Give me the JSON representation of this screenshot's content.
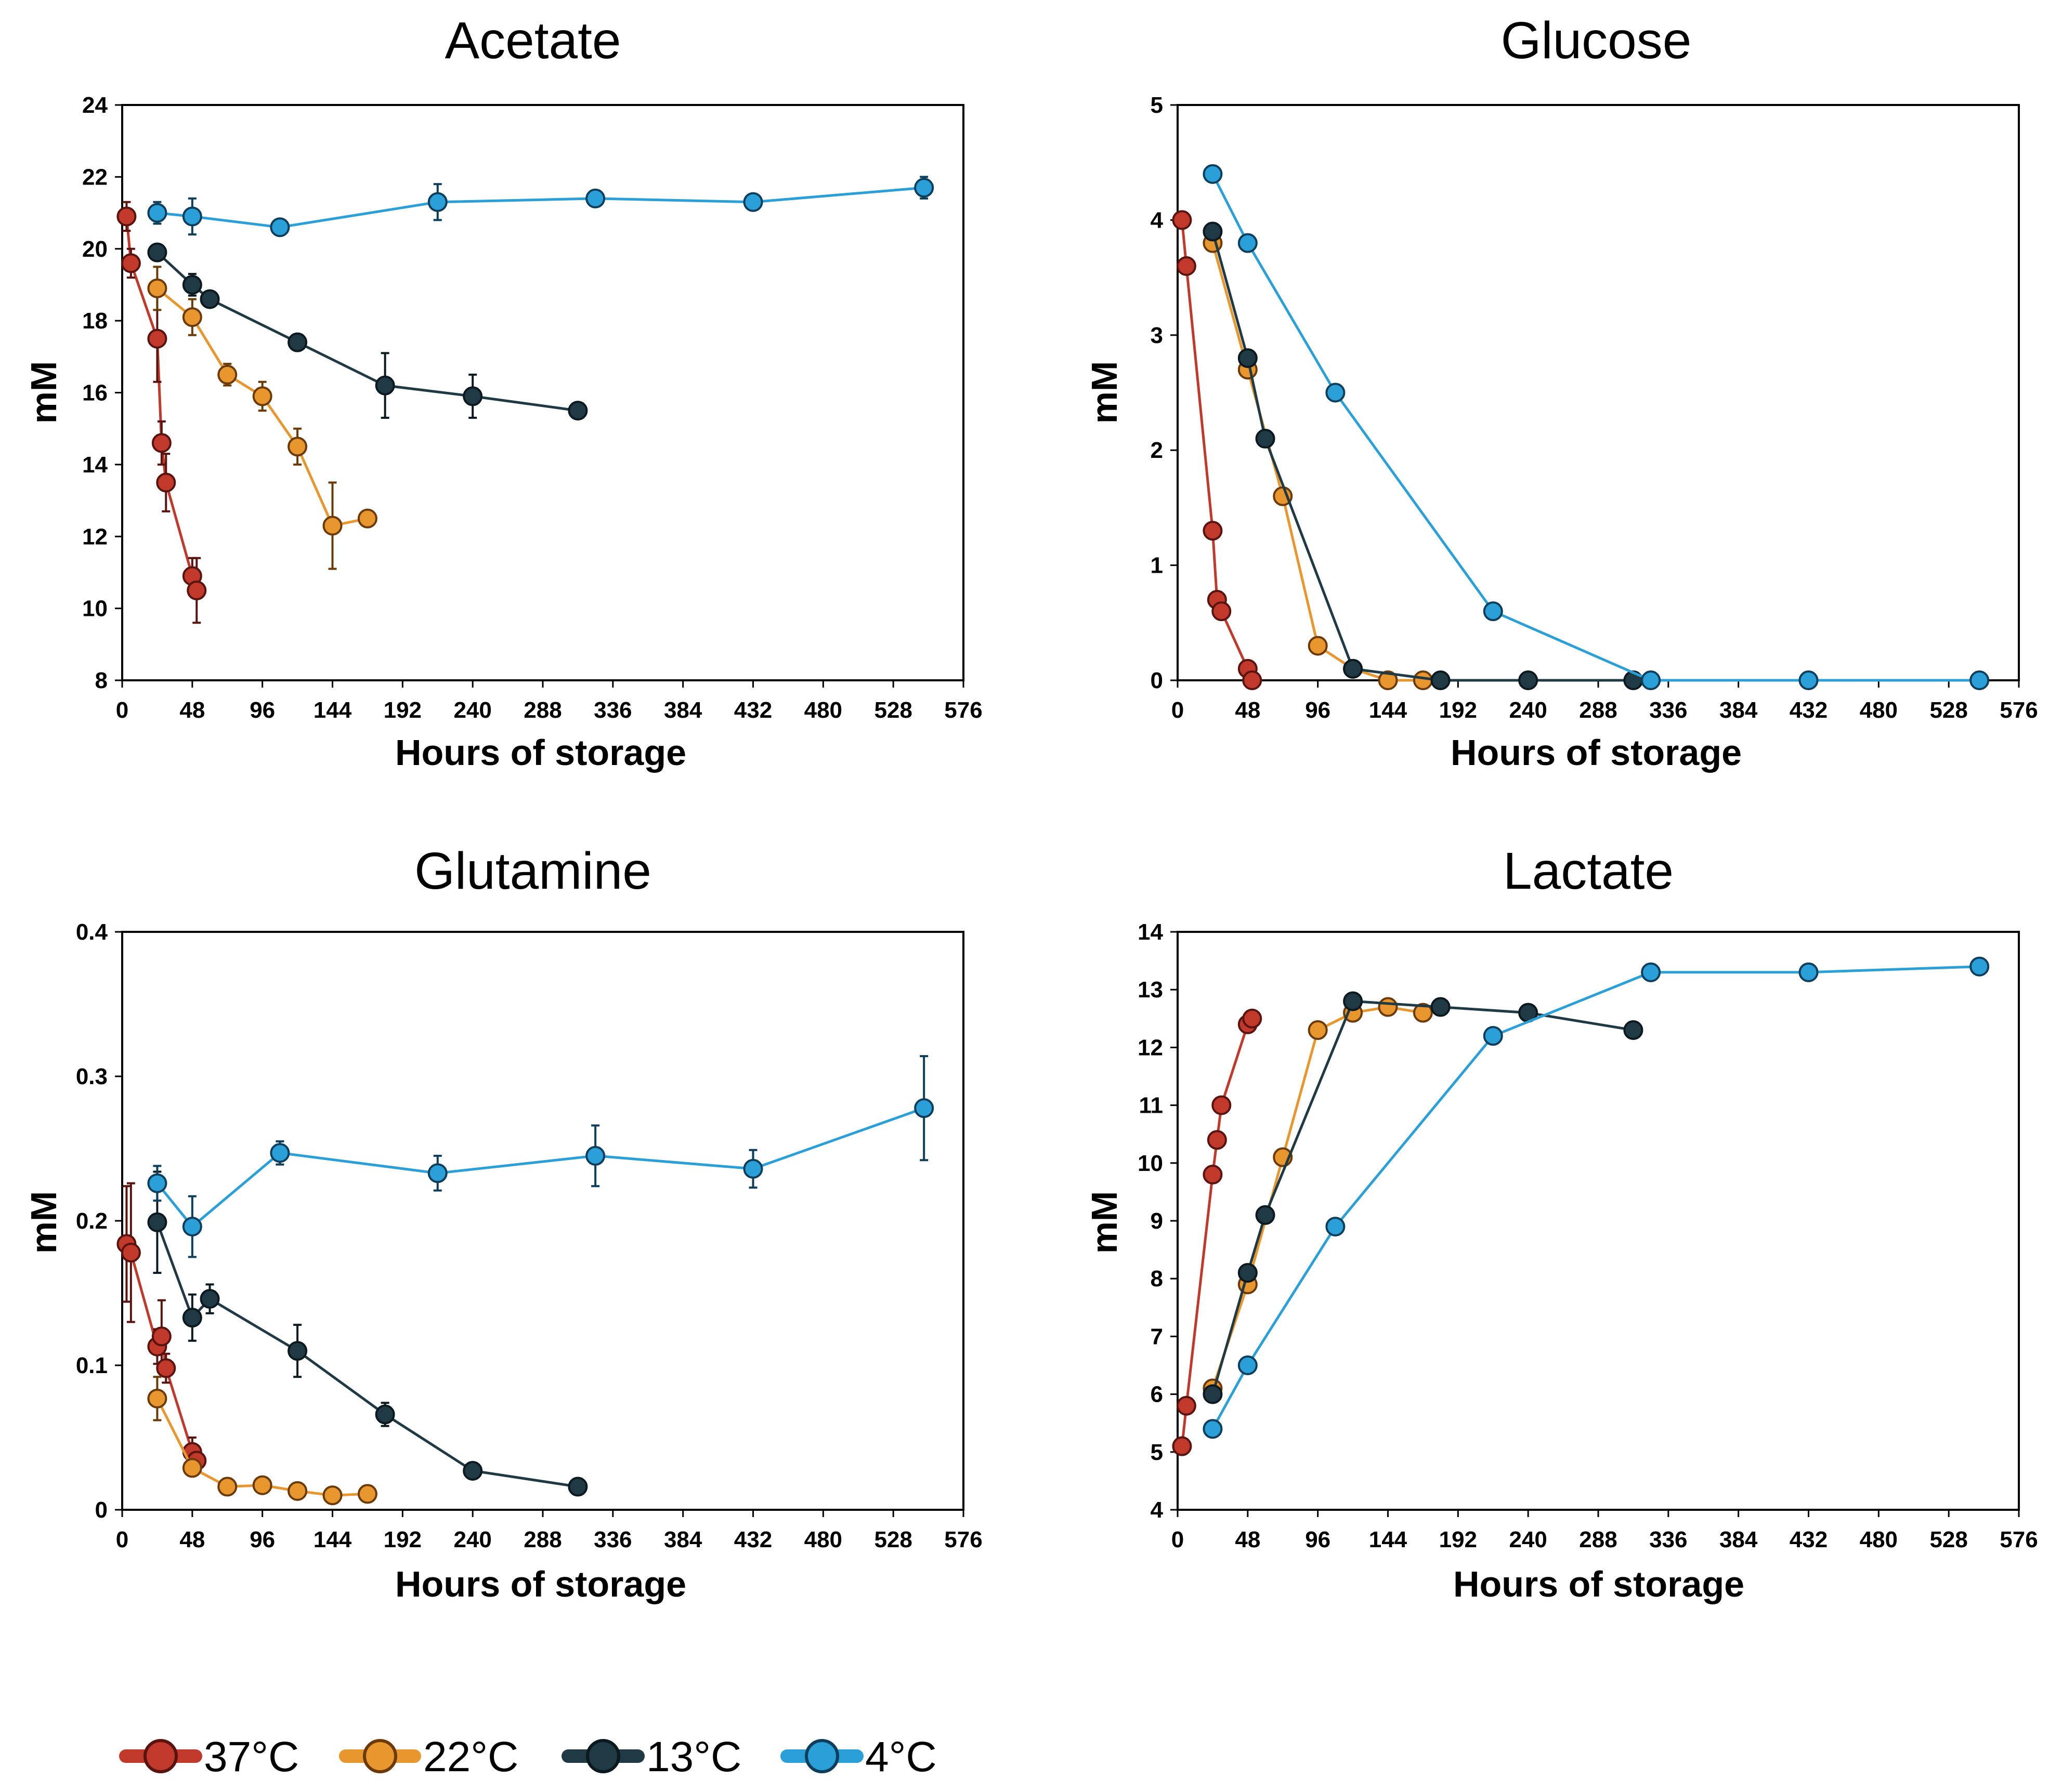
{
  "series_styles": [
    {
      "name": "37°C",
      "color": "#c0392b",
      "edge": "#5a1410"
    },
    {
      "name": "22°C",
      "color": "#e8962e",
      "edge": "#6b3a06"
    },
    {
      "name": "13°C",
      "color": "#1f3a44",
      "edge": "#0c1a20"
    },
    {
      "name": "4°C",
      "color": "#2a9fd8",
      "edge": "#0d3f5c"
    }
  ],
  "legend": [
    "37°C",
    "22°C",
    "13°C",
    "4°C"
  ],
  "chart_data": [
    {
      "type": "line",
      "title": "Acetate",
      "xlabel": "Hours of storage",
      "ylabel": "mM",
      "xlim": [
        0,
        576
      ],
      "ylim": [
        8,
        24
      ],
      "xticks": [
        0,
        48,
        96,
        144,
        192,
        240,
        288,
        336,
        384,
        432,
        480,
        528,
        576
      ],
      "yticks": [
        8,
        10,
        12,
        14,
        16,
        18,
        20,
        22,
        24
      ],
      "series": [
        {
          "name": "37°C",
          "x": [
            3,
            6,
            24,
            27,
            30,
            48,
            51
          ],
          "y": [
            20.9,
            19.6,
            17.5,
            14.6,
            13.5,
            10.9,
            10.5
          ],
          "err": [
            0.4,
            0.4,
            1.2,
            0.6,
            0.8,
            0.5,
            0.9
          ]
        },
        {
          "name": "22°C",
          "x": [
            24,
            48,
            72,
            96,
            120,
            144,
            168
          ],
          "y": [
            18.9,
            18.1,
            16.5,
            15.9,
            14.5,
            12.3,
            12.5
          ],
          "err": [
            0.6,
            0.5,
            0.3,
            0.4,
            0.5,
            1.2,
            0.2
          ]
        },
        {
          "name": "13°C",
          "x": [
            24,
            48,
            60,
            120,
            180,
            240,
            312
          ],
          "y": [
            19.9,
            19.0,
            18.6,
            17.4,
            16.2,
            15.9,
            15.5
          ],
          "err": [
            0.2,
            0.3,
            0.2,
            0.2,
            0.9,
            0.6,
            0.1
          ]
        },
        {
          "name": "4°C",
          "x": [
            24,
            48,
            108,
            216,
            324,
            432,
            549
          ],
          "y": [
            21.0,
            20.9,
            20.6,
            21.3,
            21.4,
            21.3,
            21.7
          ],
          "err": [
            0.3,
            0.5,
            0.1,
            0.5,
            0.1,
            0.1,
            0.3
          ]
        }
      ]
    },
    {
      "type": "line",
      "title": "Glucose",
      "xlabel": "Hours of storage",
      "ylabel": "mM",
      "xlim": [
        0,
        576
      ],
      "ylim": [
        0,
        5
      ],
      "xticks": [
        0,
        48,
        96,
        144,
        192,
        240,
        288,
        336,
        384,
        432,
        480,
        528,
        576
      ],
      "yticks": [
        0,
        1,
        2,
        3,
        4,
        5
      ],
      "series": [
        {
          "name": "37°C",
          "x": [
            3,
            6,
            24,
            27,
            30,
            48,
            51
          ],
          "y": [
            4.0,
            3.6,
            1.3,
            0.7,
            0.6,
            0.1,
            0.0
          ]
        },
        {
          "name": "22°C",
          "x": [
            24,
            48,
            72,
            96,
            120,
            144,
            168
          ],
          "y": [
            3.8,
            2.7,
            1.6,
            0.3,
            0.1,
            0.0,
            0.0
          ]
        },
        {
          "name": "13°C",
          "x": [
            24,
            48,
            60,
            120,
            180,
            240,
            312
          ],
          "y": [
            3.9,
            2.8,
            2.1,
            0.1,
            0.0,
            0.0,
            0.0
          ]
        },
        {
          "name": "4°C",
          "x": [
            24,
            48,
            108,
            216,
            324,
            432,
            549
          ],
          "y": [
            4.4,
            3.8,
            2.5,
            0.6,
            0.0,
            0.0,
            0.0
          ]
        }
      ]
    },
    {
      "type": "line",
      "title": "Glutamine",
      "xlabel": "Hours of storage",
      "ylabel": "mM",
      "xlim": [
        0,
        576
      ],
      "ylim": [
        0,
        0.4
      ],
      "xticks": [
        0,
        48,
        96,
        144,
        192,
        240,
        288,
        336,
        384,
        432,
        480,
        528,
        576
      ],
      "yticks": [
        0,
        0.1,
        0.2,
        0.3,
        0.4
      ],
      "ytick_labels": [
        "0",
        "0.1",
        "0.2",
        "0.3",
        "0.4"
      ],
      "series": [
        {
          "name": "37°C",
          "x": [
            3,
            6,
            24,
            27,
            30,
            48,
            51
          ],
          "y": [
            0.184,
            0.178,
            0.113,
            0.12,
            0.098,
            0.04,
            0.034
          ],
          "err": [
            0.04,
            0.048,
            0.012,
            0.025,
            0.01,
            0.01,
            0.006
          ]
        },
        {
          "name": "22°C",
          "x": [
            24,
            48,
            72,
            96,
            120,
            144,
            168
          ],
          "y": [
            0.077,
            0.029,
            0.016,
            0.017,
            0.013,
            0.01,
            0.011
          ],
          "err": [
            0.015,
            0.004,
            0.002,
            0.002,
            0.002,
            0.001,
            0.001
          ]
        },
        {
          "name": "13°C",
          "x": [
            24,
            48,
            60,
            120,
            180,
            240,
            312
          ],
          "y": [
            0.199,
            0.133,
            0.146,
            0.11,
            0.066,
            0.027,
            0.016
          ],
          "err": [
            0.035,
            0.016,
            0.01,
            0.018,
            0.008,
            0.002,
            0.002
          ]
        },
        {
          "name": "4°C",
          "x": [
            24,
            48,
            108,
            216,
            324,
            432,
            549
          ],
          "y": [
            0.226,
            0.196,
            0.247,
            0.233,
            0.245,
            0.236,
            0.278
          ],
          "err": [
            0.012,
            0.021,
            0.008,
            0.012,
            0.021,
            0.013,
            0.036
          ]
        }
      ]
    },
    {
      "type": "line",
      "title": "Lactate",
      "xlabel": "Hours of storage",
      "ylabel": "mM",
      "xlim": [
        0,
        576
      ],
      "ylim": [
        4,
        14
      ],
      "xticks": [
        0,
        48,
        96,
        144,
        192,
        240,
        288,
        336,
        384,
        432,
        480,
        528,
        576
      ],
      "yticks": [
        4,
        5,
        6,
        7,
        8,
        9,
        10,
        11,
        12,
        13,
        14
      ],
      "series": [
        {
          "name": "37°C",
          "x": [
            3,
            6,
            24,
            27,
            30,
            48,
            51
          ],
          "y": [
            5.1,
            5.8,
            9.8,
            10.4,
            11.0,
            12.4,
            12.5
          ]
        },
        {
          "name": "22°C",
          "x": [
            24,
            48,
            72,
            96,
            120,
            144,
            168
          ],
          "y": [
            6.1,
            7.9,
            10.1,
            12.3,
            12.6,
            12.7,
            12.6
          ]
        },
        {
          "name": "13°C",
          "x": [
            24,
            48,
            60,
            120,
            180,
            240,
            312
          ],
          "y": [
            6.0,
            8.1,
            9.1,
            12.8,
            12.7,
            12.6,
            12.3
          ]
        },
        {
          "name": "4°C",
          "x": [
            24,
            48,
            108,
            216,
            324,
            432,
            549
          ],
          "y": [
            5.4,
            6.5,
            8.9,
            12.2,
            13.3,
            13.3,
            13.4
          ]
        }
      ]
    }
  ]
}
